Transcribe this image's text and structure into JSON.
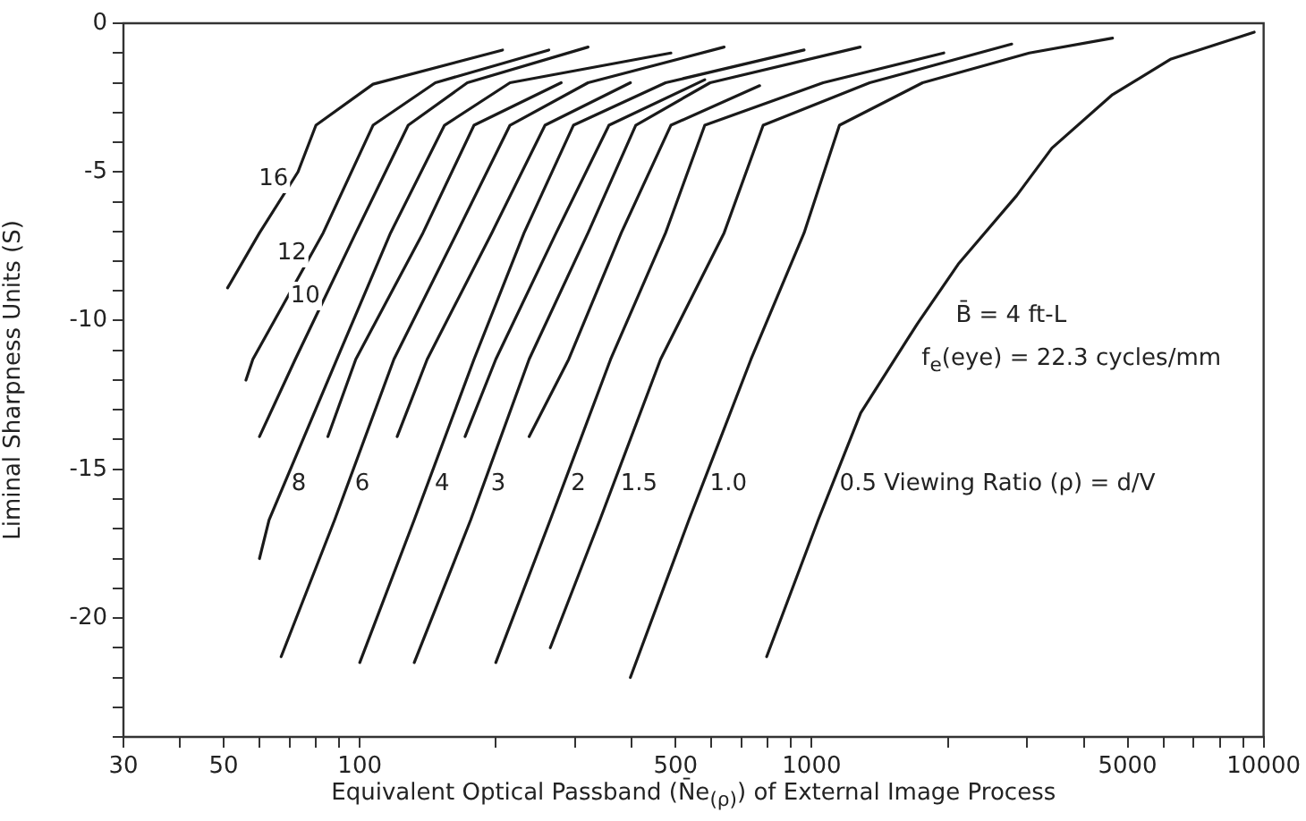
{
  "chart_data": {
    "type": "line",
    "xlabel": "Equivalent Optical Passband (N̄e$_{(ρ)}$) of External Image Process",
    "ylabel": "Liminal Sharpness Units (S)",
    "log": "x",
    "grid": false,
    "xlim": [
      30,
      10000
    ],
    "ylim": [
      -24,
      0
    ],
    "xticks": [
      30,
      {
        "value": 40,
        "label": null
      },
      50,
      {
        "value": 60,
        "label": null
      },
      {
        "value": 70,
        "label": null
      },
      {
        "value": 80,
        "label": null
      },
      {
        "value": 90,
        "label": null
      },
      100,
      {
        "value": 200,
        "label": null
      },
      {
        "value": 300,
        "label": null
      },
      {
        "value": 400,
        "label": null
      },
      500,
      {
        "value": 600,
        "label": null
      },
      {
        "value": 700,
        "label": null
      },
      {
        "value": 800,
        "label": null
      },
      {
        "value": 900,
        "label": null
      },
      1000,
      {
        "value": 2000,
        "label": null
      },
      {
        "value": 3000,
        "label": null
      },
      {
        "value": 4000,
        "label": null
      },
      5000,
      {
        "value": 6000,
        "label": null
      },
      {
        "value": 7000,
        "label": null
      },
      {
        "value": 8000,
        "label": null
      },
      {
        "value": 9000,
        "label": null
      },
      10000
    ],
    "yticks": [
      {
        "value": -24,
        "label": null
      },
      {
        "value": -23,
        "label": null
      },
      {
        "value": -22,
        "label": null
      },
      {
        "value": -21,
        "label": null
      },
      -20,
      {
        "value": -19,
        "label": null
      },
      {
        "value": -18,
        "label": null
      },
      {
        "value": -17,
        "label": null
      },
      {
        "value": -16,
        "label": null
      },
      -15,
      {
        "value": -14,
        "label": null
      },
      {
        "value": -13,
        "label": null
      },
      {
        "value": -12,
        "label": null
      },
      {
        "value": -11,
        "label": null
      },
      -10,
      {
        "value": -9,
        "label": null
      },
      {
        "value": -8,
        "label": null
      },
      {
        "value": -7,
        "label": null
      },
      {
        "value": -6,
        "label": null
      },
      -5,
      {
        "value": -4,
        "label": null
      },
      {
        "value": -3,
        "label": null
      },
      {
        "value": -2,
        "label": null
      },
      {
        "value": -1,
        "label": null
      },
      0
    ],
    "annotations": [
      "B̄ = 4 ft-L",
      "f$_{e}$(eye) = 22.3 cycles/mm"
    ],
    "series": [
      {
        "name": "16",
        "color": "#1a1a1a",
        "x": [
          51,
          60,
          73,
          80,
          107,
          207
        ],
        "values": [
          -8.9,
          -7.05,
          -5,
          -3.43,
          -2.05,
          -0.9
        ]
      },
      {
        "name": "12",
        "color": "#1a1a1a",
        "x": [
          56,
          58,
          83,
          107,
          147,
          262
        ],
        "values": [
          -12,
          -11.3,
          -7.05,
          -3.43,
          -2,
          -0.9
        ]
      },
      {
        "name": "10",
        "color": "#1a1a1a",
        "x": [
          60,
          72,
          98,
          128,
          173,
          320
        ],
        "values": [
          -13.9,
          -11.3,
          -7.05,
          -3.43,
          -2,
          -0.8
        ]
      },
      {
        "name": "8",
        "color": "#1a1a1a",
        "x": [
          60,
          63,
          89,
          117,
          154,
          215,
          488
        ],
        "values": [
          -18,
          -16.7,
          -11.3,
          -7.05,
          -3.43,
          -2,
          -1
        ]
      },
      {
        "color": "#1a1a1a",
        "x": [
          85,
          98,
          138,
          179,
          279
        ],
        "values": [
          -13.9,
          -11.3,
          -7.05,
          -3.43,
          -2
        ]
      },
      {
        "name": "6",
        "color": "#1a1a1a",
        "x": [
          67,
          88,
          119,
          164,
          215,
          320,
          640
        ],
        "values": [
          -21.3,
          -16.7,
          -11.3,
          -7.05,
          -3.43,
          -2,
          -0.8
        ]
      },
      {
        "color": "#1a1a1a",
        "x": [
          121,
          141,
          196,
          257,
          397
        ],
        "values": [
          -13.9,
          -11.3,
          -7.05,
          -3.43,
          -2
        ]
      },
      {
        "name": "4",
        "color": "#1a1a1a",
        "x": [
          100,
          132,
          179,
          231,
          297,
          475,
          962
        ],
        "values": [
          -21.5,
          -16.7,
          -11.3,
          -7.05,
          -3.43,
          -2,
          -0.9
        ]
      },
      {
        "color": "#1a1a1a",
        "x": [
          171,
          200,
          272,
          356,
          580
        ],
        "values": [
          -13.9,
          -11.3,
          -7.05,
          -3.43,
          -1.9
        ]
      },
      {
        "name": "3",
        "color": "#1a1a1a",
        "x": [
          132,
          176,
          237,
          320,
          408,
          596,
          1280
        ],
        "values": [
          -21.5,
          -16.7,
          -11.3,
          -7.05,
          -3.43,
          -2,
          -0.8
        ]
      },
      {
        "color": "#1a1a1a",
        "x": [
          237,
          290,
          379,
          488,
          767
        ],
        "values": [
          -13.9,
          -11.3,
          -7.05,
          -3.43,
          -2.1
        ]
      },
      {
        "name": "2",
        "color": "#1a1a1a",
        "x": [
          200,
          264,
          359,
          475,
          580,
          1060,
          1960
        ],
        "values": [
          -21.5,
          -16.7,
          -11.3,
          -7.05,
          -3.43,
          -2,
          -1
        ]
      },
      {
        "name": "1.5",
        "color": "#1a1a1a",
        "x": [
          264,
          340,
          463,
          640,
          781,
          1344,
          2770
        ],
        "values": [
          -21,
          -16.7,
          -11.3,
          -7.05,
          -3.43,
          -2,
          -0.7
        ]
      },
      {
        "name": "1.0",
        "color": "#1a1a1a",
        "x": [
          397,
          535,
          734,
          962,
          1152,
          1760,
          3030,
          4630
        ],
        "values": [
          -22,
          -16.7,
          -11.3,
          -7.05,
          -3.43,
          -2,
          -1,
          -0.5
        ]
      },
      {
        "name": "0.5 Viewing Ratio (ρ) = d/V",
        "color": "#1a1a1a",
        "x": [
          795,
          1034,
          1284,
          1714,
          2110,
          2840,
          3400,
          4630,
          6240,
          9530
        ],
        "values": [
          -21.3,
          -16.7,
          -13.1,
          -10.1,
          -8.1,
          -5.8,
          -4.2,
          -2.4,
          -1.2,
          -0.3
        ]
      }
    ]
  }
}
